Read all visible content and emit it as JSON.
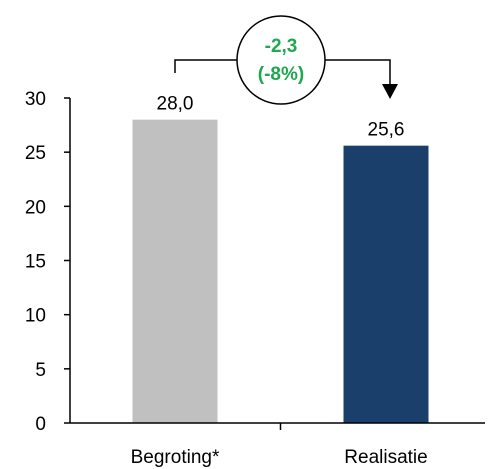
{
  "chart_data": {
    "type": "bar",
    "categories": [
      "Begroting*",
      "Realisatie"
    ],
    "values": [
      28.0,
      25.6
    ],
    "value_labels": [
      "28,0",
      "25,6"
    ],
    "ylim": [
      0,
      30
    ],
    "yticks": [
      0,
      5,
      10,
      15,
      20,
      25,
      30
    ],
    "grid": false,
    "colors": [
      "#c0c0c0",
      "#1b3f6b"
    ],
    "difference": {
      "value_label": "-2,3",
      "percent_label": "(-8%)",
      "color": "#1fa84f"
    }
  }
}
